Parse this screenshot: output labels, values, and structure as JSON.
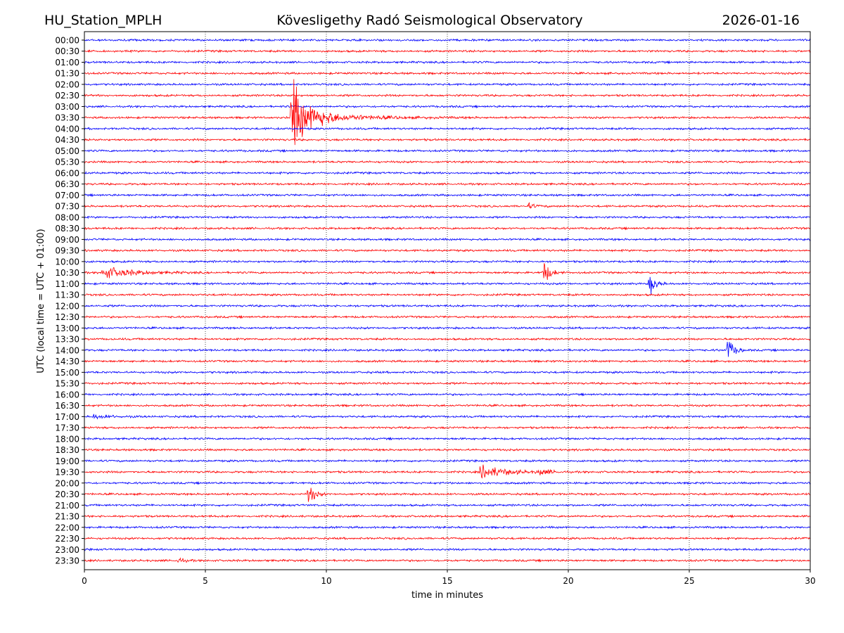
{
  "chart_data": {
    "type": "line",
    "title_left": "HU_Station_MPLH",
    "title": "Kövesligethy Radó Seismological Observatory",
    "title_right": "2026-01-16",
    "xlabel": "time in minutes",
    "ylabel": "UTC (local time = UTC + 01:00)",
    "xlim": [
      0,
      30
    ],
    "xticks": [
      "0",
      "5",
      "10",
      "15",
      "20",
      "25",
      "30"
    ],
    "grid": "vertical dotted at x ticks",
    "colors": [
      "#0000ff",
      "#ff0000"
    ],
    "noise_amplitude_rows": 0.09,
    "rows": [
      "00:00",
      "00:30",
      "01:00",
      "01:30",
      "02:00",
      "02:30",
      "03:00",
      "03:30",
      "04:00",
      "04:30",
      "05:00",
      "05:30",
      "06:00",
      "06:30",
      "07:00",
      "07:30",
      "08:00",
      "08:30",
      "09:00",
      "09:30",
      "10:00",
      "10:30",
      "11:00",
      "11:30",
      "12:00",
      "12:30",
      "13:00",
      "13:30",
      "14:00",
      "14:30",
      "15:00",
      "15:30",
      "16:00",
      "16:30",
      "17:00",
      "17:30",
      "18:00",
      "18:30",
      "19:00",
      "19:30",
      "20:00",
      "20:30",
      "21:00",
      "21:30",
      "22:00",
      "22:30",
      "23:00",
      "23:30"
    ],
    "events": [
      {
        "row": "03:30",
        "start_min": 8.5,
        "duration_min": 1.2,
        "amplitude_rows": 4.7
      },
      {
        "row": "03:30",
        "start_min": 9.3,
        "duration_min": 4.5,
        "amplitude_rows": 0.5
      },
      {
        "row": "07:30",
        "start_min": 18.3,
        "duration_min": 0.6,
        "amplitude_rows": 0.3
      },
      {
        "row": "10:30",
        "start_min": 0.7,
        "duration_min": 2.6,
        "amplitude_rows": 0.6
      },
      {
        "row": "10:30",
        "start_min": 18.9,
        "duration_min": 0.6,
        "amplitude_rows": 1.5
      },
      {
        "row": "11:00",
        "start_min": 23.3,
        "duration_min": 0.5,
        "amplitude_rows": 1.6
      },
      {
        "row": "14:00",
        "start_min": 26.5,
        "duration_min": 0.6,
        "amplitude_rows": 1.5
      },
      {
        "row": "17:00",
        "start_min": 0.3,
        "duration_min": 1.5,
        "amplitude_rows": 0.2
      },
      {
        "row": "19:30",
        "start_min": 16.3,
        "duration_min": 2.2,
        "amplitude_rows": 0.7
      },
      {
        "row": "19:30",
        "start_min": 18.7,
        "duration_min": 1.0,
        "amplitude_rows": 0.3
      },
      {
        "row": "20:30",
        "start_min": 9.2,
        "duration_min": 0.5,
        "amplitude_rows": 1.5
      },
      {
        "row": "23:30",
        "start_min": 3.8,
        "duration_min": 0.6,
        "amplitude_rows": 0.35
      }
    ]
  }
}
